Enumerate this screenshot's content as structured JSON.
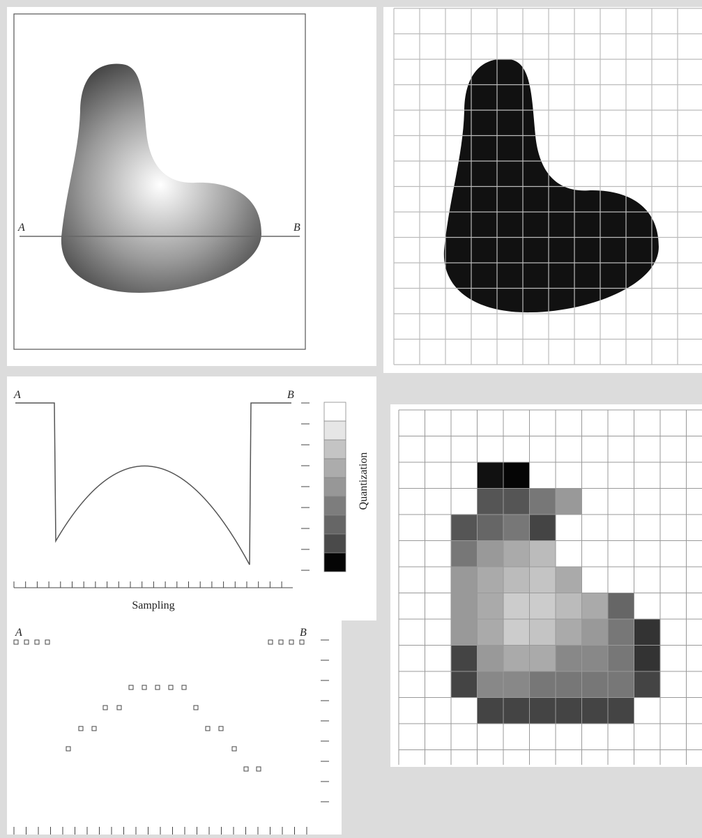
{
  "panels": {
    "original": {
      "start_label": "A",
      "end_label": "B"
    },
    "profile": {
      "start_label": "A",
      "end_label": "B",
      "y_axis_label": "Quantization",
      "x_axis_label": "Sampling"
    },
    "quantized": {
      "start_label": "A",
      "end_label": "B"
    }
  }
}
